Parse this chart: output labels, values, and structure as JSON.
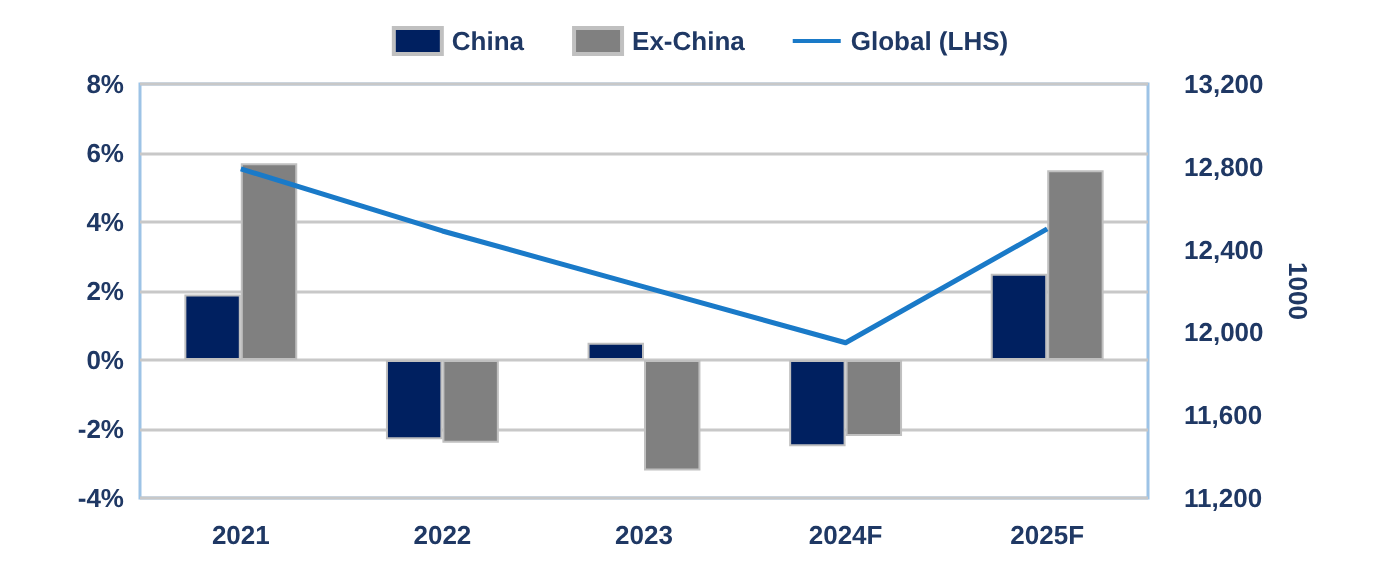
{
  "chart_data": {
    "type": "bar",
    "categories": [
      "2021",
      "2022",
      "2023",
      "2024F",
      "2025F"
    ],
    "series": [
      {
        "name": "China",
        "color": "#002060",
        "values": [
          1.9,
          -2.3,
          0.5,
          -2.5,
          2.5
        ]
      },
      {
        "name": "Ex-China",
        "color": "#808080",
        "values": [
          5.7,
          -2.4,
          -3.2,
          -2.2,
          5.5
        ]
      },
      {
        "name": "Global (LHS)",
        "type": "line",
        "axis": "y2",
        "color": "#1a7ac8",
        "values": [
          12790,
          12490,
          12220,
          11950,
          12500
        ]
      }
    ],
    "ylim": [
      -4,
      8
    ],
    "yticks": [
      {
        "value": -4,
        "label": "-4%"
      },
      {
        "value": -2,
        "label": "-2%"
      },
      {
        "value": 0,
        "label": "0%"
      },
      {
        "value": 2,
        "label": "2%"
      },
      {
        "value": 4,
        "label": "4%"
      },
      {
        "value": 6,
        "label": "6%"
      },
      {
        "value": 8,
        "label": "8%"
      }
    ],
    "y2lim": [
      11200,
      13200
    ],
    "y2ticks": [
      {
        "value": 11200,
        "label": "11,200"
      },
      {
        "value": 11600,
        "label": "11,600"
      },
      {
        "value": 12000,
        "label": "12,000"
      },
      {
        "value": 12400,
        "label": "12,400"
      },
      {
        "value": 12800,
        "label": "12,800"
      },
      {
        "value": 13200,
        "label": "13,200"
      }
    ],
    "y2label": "1000",
    "grid": "y",
    "legend": "top",
    "marker": "none"
  }
}
